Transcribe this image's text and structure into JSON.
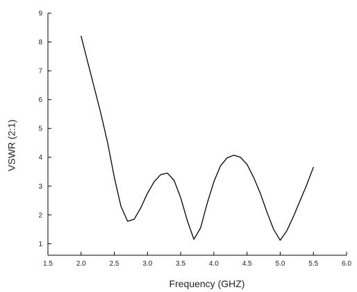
{
  "chart_data": {
    "type": "line",
    "title": "",
    "xlabel": "Frequency (GHZ)",
    "ylabel": "VSWR (2:1)",
    "xlim": [
      1.5,
      6.0
    ],
    "ylim": [
      0.6,
      9.0
    ],
    "x_ticks": [
      "1.5",
      "2.0",
      "2.5",
      "3.0",
      "3.5",
      "4.0",
      "4.5",
      "5.0",
      "5.5",
      "6.0"
    ],
    "y_ticks": [
      "1",
      "2",
      "3",
      "4",
      "5",
      "6",
      "7",
      "8",
      "9"
    ],
    "grid": false,
    "legend": "none",
    "line_color": "#000000",
    "series": [
      {
        "x": [
          2.0,
          2.1,
          2.2,
          2.3,
          2.4,
          2.5,
          2.6,
          2.7,
          2.8,
          2.9,
          3.0,
          3.1,
          3.2,
          3.3,
          3.4,
          3.5,
          3.6,
          3.7,
          3.8,
          3.9,
          4.0,
          4.1,
          4.2,
          4.3,
          4.4,
          4.5,
          4.6,
          4.7,
          4.8,
          4.9,
          5.0,
          5.1,
          5.2,
          5.3,
          5.4,
          5.5
        ],
        "y": [
          8.2,
          7.3,
          6.4,
          5.5,
          4.5,
          3.3,
          2.3,
          1.78,
          1.85,
          2.25,
          2.75,
          3.15,
          3.4,
          3.45,
          3.2,
          2.6,
          1.8,
          1.15,
          1.55,
          2.4,
          3.15,
          3.7,
          3.98,
          4.07,
          4.0,
          3.75,
          3.3,
          2.75,
          2.1,
          1.5,
          1.12,
          1.45,
          1.95,
          2.5,
          3.05,
          3.65
        ]
      }
    ]
  }
}
